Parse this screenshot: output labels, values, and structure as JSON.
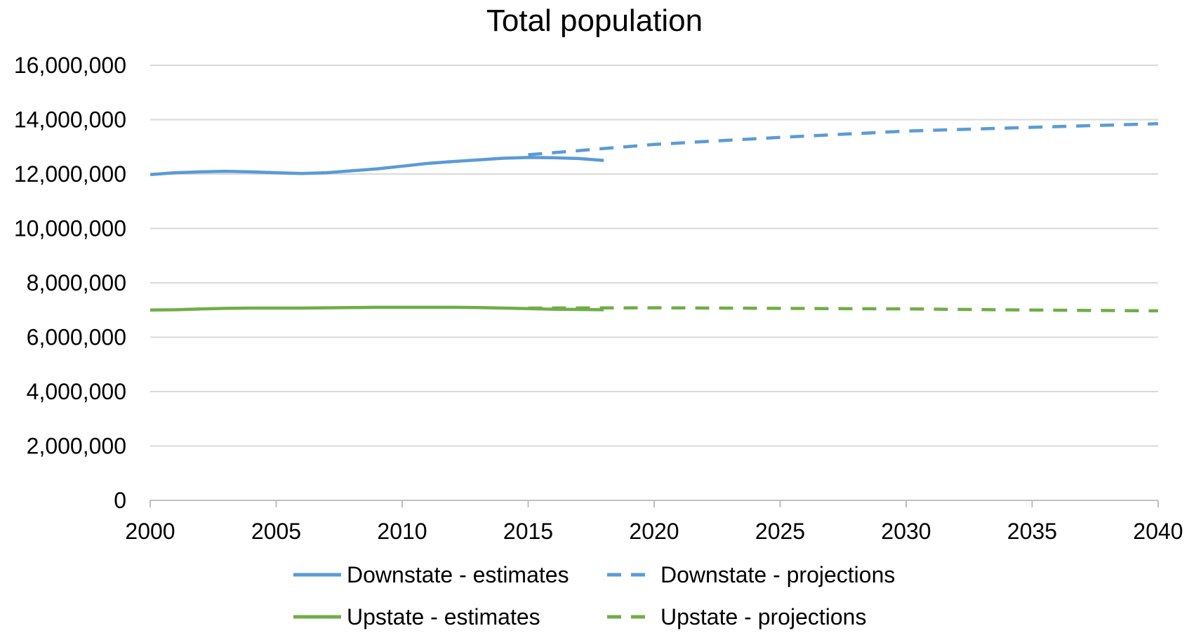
{
  "chart_data": {
    "type": "line",
    "title": "Total population",
    "xlabel": "",
    "ylabel": "",
    "xlim": [
      2000,
      2040
    ],
    "ylim": [
      0,
      16000000
    ],
    "x_ticks": [
      2000,
      2005,
      2010,
      2015,
      2020,
      2025,
      2030,
      2035,
      2040
    ],
    "x_tick_labels": [
      "2000",
      "2005",
      "2010",
      "2015",
      "2020",
      "2025",
      "2030",
      "2035",
      "2040"
    ],
    "y_ticks": [
      0,
      2000000,
      4000000,
      6000000,
      8000000,
      10000000,
      12000000,
      14000000,
      16000000
    ],
    "y_tick_labels": [
      "0",
      "2,000,000",
      "4,000,000",
      "6,000,000",
      "8,000,000",
      "10,000,000",
      "12,000,000",
      "14,000,000",
      "16,000,000"
    ],
    "grid": "horizontal",
    "legend_position": "bottom",
    "series": [
      {
        "name": "Downstate - estimates",
        "color": "#5B9BD5",
        "style": "solid",
        "x": [
          2000,
          2001,
          2002,
          2003,
          2004,
          2005,
          2006,
          2007,
          2008,
          2009,
          2010,
          2011,
          2012,
          2013,
          2014,
          2015,
          2016,
          2017,
          2018
        ],
        "y": [
          11980000,
          12050000,
          12080000,
          12100000,
          12080000,
          12050000,
          12020000,
          12050000,
          12120000,
          12190000,
          12290000,
          12390000,
          12460000,
          12520000,
          12580000,
          12610000,
          12600000,
          12570000,
          12500000
        ]
      },
      {
        "name": "Downstate - projections",
        "color": "#5B9BD5",
        "style": "dashed",
        "x": [
          2015,
          2020,
          2025,
          2030,
          2035,
          2040
        ],
        "y": [
          12710000,
          13090000,
          13350000,
          13580000,
          13720000,
          13850000
        ]
      },
      {
        "name": "Upstate - estimates",
        "color": "#70AD47",
        "style": "solid",
        "x": [
          2000,
          2001,
          2002,
          2003,
          2004,
          2005,
          2006,
          2007,
          2008,
          2009,
          2010,
          2011,
          2012,
          2013,
          2014,
          2015,
          2016,
          2017,
          2018
        ],
        "y": [
          7000000,
          7010000,
          7040000,
          7060000,
          7070000,
          7070000,
          7070000,
          7080000,
          7090000,
          7100000,
          7100000,
          7100000,
          7100000,
          7090000,
          7070000,
          7050000,
          7030000,
          7020000,
          7010000
        ]
      },
      {
        "name": "Upstate - projections",
        "color": "#70AD47",
        "style": "dashed",
        "x": [
          2015,
          2020,
          2025,
          2030,
          2035,
          2040
        ],
        "y": [
          7070000,
          7080000,
          7060000,
          7040000,
          7000000,
          6970000
        ]
      }
    ]
  }
}
